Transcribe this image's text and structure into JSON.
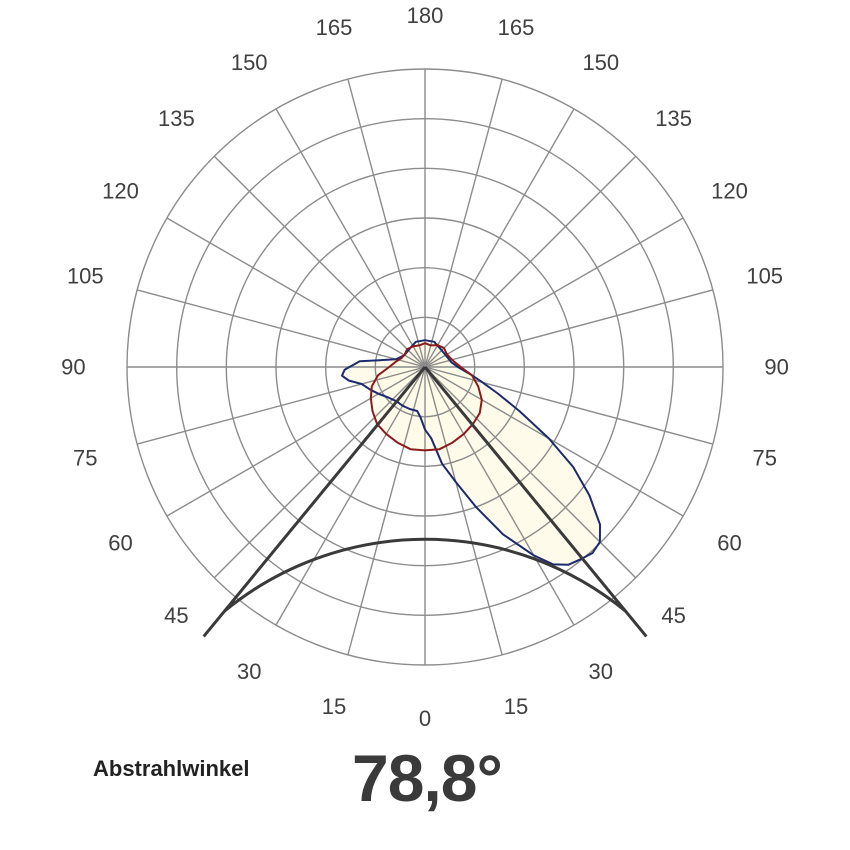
{
  "chart_data": {
    "type": "polar",
    "angle_ticks": {
      "left": [
        "180",
        "165",
        "150",
        "135",
        "120",
        "105",
        "90",
        "75",
        "60",
        "45",
        "30",
        "15",
        "0"
      ],
      "right": [
        "165",
        "150",
        "135",
        "120",
        "105",
        "90",
        "75",
        "60",
        "45",
        "30",
        "15"
      ]
    },
    "angle_step_deg": 15,
    "radial_rings": 6,
    "grid": true,
    "beam_angle_deg": 78.8,
    "beam_angle_label": "Abstrahlwinkel",
    "beam_angle_value": "78,8°",
    "series": [
      {
        "color": "#1c2a6e",
        "fill": "#fffbe9",
        "points": [
          [
            -180,
            0.09
          ],
          [
            -160,
            0.09
          ],
          [
            -140,
            0.08
          ],
          [
            -120,
            0.08
          ],
          [
            -105,
            0.1
          ],
          [
            -95,
            0.22
          ],
          [
            -88,
            0.27
          ],
          [
            -84,
            0.28
          ],
          [
            -80,
            0.26
          ],
          [
            -75,
            0.22
          ],
          [
            -68,
            0.2
          ],
          [
            -60,
            0.18
          ],
          [
            -50,
            0.16
          ],
          [
            -40,
            0.15
          ],
          [
            -30,
            0.15
          ],
          [
            -20,
            0.15
          ],
          [
            -10,
            0.15
          ],
          [
            -5,
            0.17
          ],
          [
            0,
            0.21
          ],
          [
            5,
            0.24
          ],
          [
            10,
            0.33
          ],
          [
            15,
            0.4
          ],
          [
            20,
            0.5
          ],
          [
            25,
            0.62
          ],
          [
            30,
            0.73
          ],
          [
            33,
            0.79
          ],
          [
            36,
            0.82
          ],
          [
            39,
            0.83
          ],
          [
            42,
            0.84
          ],
          [
            45,
            0.83
          ],
          [
            48,
            0.79
          ],
          [
            52,
            0.7
          ],
          [
            56,
            0.6
          ],
          [
            60,
            0.48
          ],
          [
            65,
            0.35
          ],
          [
            70,
            0.26
          ],
          [
            75,
            0.2
          ],
          [
            80,
            0.16
          ],
          [
            85,
            0.13
          ],
          [
            90,
            0.11
          ],
          [
            100,
            0.09
          ],
          [
            120,
            0.08
          ],
          [
            140,
            0.08
          ],
          [
            160,
            0.09
          ],
          [
            180,
            0.09
          ]
        ]
      },
      {
        "color": "#8b1a1a",
        "fill": "#fffbe9",
        "points": [
          [
            -180,
            0.08
          ],
          [
            -165,
            0.075
          ],
          [
            -150,
            0.08
          ],
          [
            -135,
            0.085
          ],
          [
            -120,
            0.08
          ],
          [
            -110,
            0.085
          ],
          [
            -100,
            0.1
          ],
          [
            -90,
            0.12
          ],
          [
            -80,
            0.16
          ],
          [
            -70,
            0.19
          ],
          [
            -60,
            0.21
          ],
          [
            -50,
            0.23
          ],
          [
            -40,
            0.25
          ],
          [
            -30,
            0.26
          ],
          [
            -20,
            0.27
          ],
          [
            -10,
            0.28
          ],
          [
            0,
            0.28
          ],
          [
            10,
            0.28
          ],
          [
            20,
            0.27
          ],
          [
            30,
            0.26
          ],
          [
            40,
            0.25
          ],
          [
            50,
            0.24
          ],
          [
            60,
            0.22
          ],
          [
            70,
            0.19
          ],
          [
            80,
            0.16
          ],
          [
            90,
            0.12
          ],
          [
            100,
            0.1
          ],
          [
            110,
            0.09
          ],
          [
            120,
            0.085
          ],
          [
            135,
            0.09
          ],
          [
            150,
            0.085
          ],
          [
            165,
            0.075
          ],
          [
            180,
            0.08
          ]
        ]
      }
    ]
  }
}
